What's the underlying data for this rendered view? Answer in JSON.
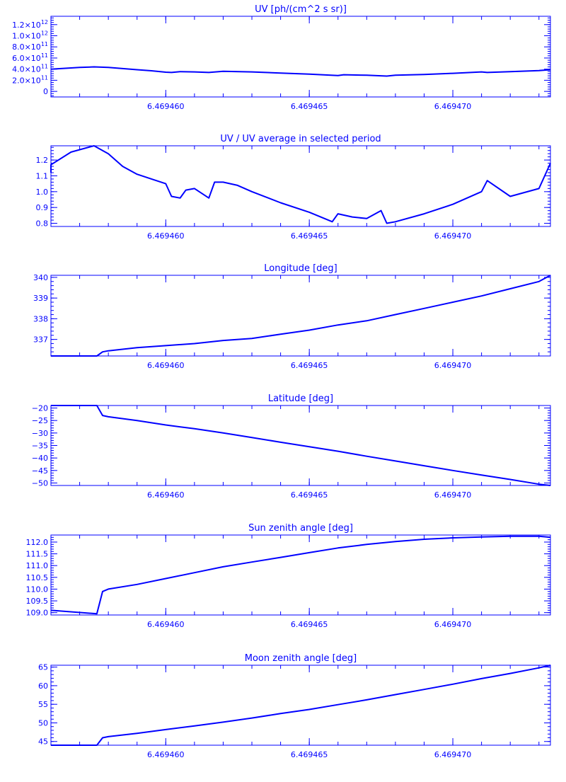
{
  "style": {
    "color": "#0000ff",
    "background": "#ffffff"
  },
  "chart_data": [
    {
      "type": "line",
      "title": "UV [ph/(cm^2 s sr)]",
      "xlabel": "",
      "ylabel": "",
      "xlim": [
        6.469456,
        6.4694734
      ],
      "ylim": [
        -0.1,
        1.35
      ],
      "grid": false,
      "yticks": [
        0,
        0.2,
        0.4,
        0.6,
        0.8,
        1.0,
        1.2
      ],
      "ytick_labels": [
        {
          "m": "0",
          "e": ""
        },
        {
          "m": "2.0×10",
          "e": "11"
        },
        {
          "m": "4.0×10",
          "e": "11"
        },
        {
          "m": "6.0×10",
          "e": "11"
        },
        {
          "m": "8.0×10",
          "e": "11"
        },
        {
          "m": "1.0×10",
          "e": "12"
        },
        {
          "m": "1.2×10",
          "e": "12"
        }
      ],
      "xticks": [
        6.46946,
        6.469465,
        6.46947
      ],
      "xtick_labels": [
        "6.469460",
        "6.469465",
        "6.469470"
      ],
      "series": [
        {
          "x": [
            6.469456,
            6.469457,
            6.4694575,
            6.469458,
            6.4694585,
            6.469459,
            6.4694595,
            6.46946,
            6.4694602,
            6.4694605,
            6.469461,
            6.4694615,
            6.469462,
            6.469463,
            6.469464,
            6.469465,
            6.469466,
            6.4694662,
            6.469467,
            6.4694677,
            6.469468,
            6.469469,
            6.46947,
            6.469471,
            6.4694712,
            6.469472,
            6.469473,
            6.4694734
          ],
          "y": [
            0.4,
            0.43,
            0.44,
            0.43,
            0.41,
            0.39,
            0.37,
            0.345,
            0.34,
            0.355,
            0.35,
            0.34,
            0.36,
            0.35,
            0.33,
            0.31,
            0.285,
            0.3,
            0.29,
            0.275,
            0.29,
            0.305,
            0.325,
            0.35,
            0.34,
            0.355,
            0.375,
            0.39
          ]
        }
      ]
    },
    {
      "type": "line",
      "title": "UV / UV average in selected period",
      "xlabel": "",
      "ylabel": "",
      "xlim": [
        6.469456,
        6.4694734
      ],
      "ylim": [
        0.78,
        1.29
      ],
      "grid": false,
      "yticks": [
        0.8,
        0.9,
        1.0,
        1.1,
        1.2
      ],
      "ytick_labels": [
        {
          "m": "0.8",
          "e": ""
        },
        {
          "m": "0.9",
          "e": ""
        },
        {
          "m": "1.0",
          "e": ""
        },
        {
          "m": "1.1",
          "e": ""
        },
        {
          "m": "1.2",
          "e": ""
        }
      ],
      "xticks": [
        6.46946,
        6.469465,
        6.46947
      ],
      "xtick_labels": [
        "6.469460",
        "6.469465",
        "6.469470"
      ],
      "series": [
        {
          "x": [
            6.469456,
            6.469456,
            6.4694567,
            6.4694575,
            6.469458,
            6.4694585,
            6.469459,
            6.46946,
            6.4694602,
            6.4694605,
            6.4694607,
            6.469461,
            6.4694615,
            6.4694617,
            6.469462,
            6.4694625,
            6.469463,
            6.469464,
            6.469465,
            6.4694658,
            6.469466,
            6.4694665,
            6.469467,
            6.4694675,
            6.4694677,
            6.469468,
            6.469469,
            6.46947,
            6.469471,
            6.4694712,
            6.469472,
            6.469473,
            6.4694734
          ],
          "y": [
            1.12,
            1.17,
            1.25,
            1.3,
            1.24,
            1.16,
            1.11,
            1.05,
            0.97,
            0.96,
            1.01,
            1.02,
            0.96,
            1.06,
            1.06,
            1.04,
            1.0,
            0.93,
            0.87,
            0.81,
            0.86,
            0.84,
            0.83,
            0.88,
            0.8,
            0.81,
            0.86,
            0.92,
            1.0,
            1.07,
            0.97,
            1.02,
            1.18
          ]
        }
      ]
    },
    {
      "type": "line",
      "title": "Longitude [deg]",
      "xlabel": "",
      "ylabel": "",
      "xlim": [
        6.469456,
        6.4694734
      ],
      "ylim": [
        336.2,
        340.1
      ],
      "grid": false,
      "yticks": [
        337,
        338,
        339,
        340
      ],
      "ytick_labels": [
        {
          "m": "337",
          "e": ""
        },
        {
          "m": "338",
          "e": ""
        },
        {
          "m": "339",
          "e": ""
        },
        {
          "m": "340",
          "e": ""
        }
      ],
      "xticks": [
        6.46946,
        6.469465,
        6.46947
      ],
      "xtick_labels": [
        "6.469460",
        "6.469465",
        "6.469470"
      ],
      "series": [
        {
          "x": [
            6.469456,
            6.469457,
            6.4694576,
            6.4694578,
            6.469458,
            6.469459,
            6.46946,
            6.469461,
            6.469462,
            6.469463,
            6.469464,
            6.469465,
            6.469466,
            6.469467,
            6.469468,
            6.469469,
            6.46947,
            6.469471,
            6.469472,
            6.469473,
            6.4694734
          ],
          "y": [
            336.2,
            336.2,
            336.2,
            336.4,
            336.45,
            336.6,
            336.7,
            336.8,
            336.95,
            337.05,
            337.25,
            337.45,
            337.7,
            337.9,
            338.2,
            338.5,
            338.8,
            339.1,
            339.45,
            339.8,
            340.1
          ]
        }
      ]
    },
    {
      "type": "line",
      "title": "Latitude [deg]",
      "xlabel": "",
      "ylabel": "",
      "xlim": [
        6.469456,
        6.4694734
      ],
      "ylim": [
        -51,
        -19
      ],
      "grid": false,
      "yticks": [
        -50,
        -45,
        -40,
        -35,
        -30,
        -25,
        -20
      ],
      "ytick_labels": [
        {
          "m": "−50",
          "e": ""
        },
        {
          "m": "−45",
          "e": ""
        },
        {
          "m": "−40",
          "e": ""
        },
        {
          "m": "−35",
          "e": ""
        },
        {
          "m": "−30",
          "e": ""
        },
        {
          "m": "−25",
          "e": ""
        },
        {
          "m": "−20",
          "e": ""
        }
      ],
      "xticks": [
        6.46946,
        6.469465,
        6.46947
      ],
      "xtick_labels": [
        "6.469460",
        "6.469465",
        "6.469470"
      ],
      "series": [
        {
          "x": [
            6.469456,
            6.4694576,
            6.4694578,
            6.469458,
            6.469459,
            6.46946,
            6.469461,
            6.469462,
            6.469463,
            6.469464,
            6.469465,
            6.469466,
            6.469467,
            6.469468,
            6.469469,
            6.46947,
            6.469471,
            6.469472,
            6.469473,
            6.4694734
          ],
          "y": [
            -19,
            -19,
            -23,
            -23.5,
            -25,
            -26.8,
            -28.3,
            -30,
            -31.8,
            -33.7,
            -35.5,
            -37.3,
            -39.3,
            -41.2,
            -43.1,
            -45,
            -46.8,
            -48.6,
            -50.5,
            -51
          ]
        }
      ]
    },
    {
      "type": "line",
      "title": "Sun zenith angle [deg]",
      "xlabel": "",
      "ylabel": "",
      "xlim": [
        6.469456,
        6.4694734
      ],
      "ylim": [
        108.9,
        112.3
      ],
      "grid": false,
      "yticks": [
        109.0,
        109.5,
        110.0,
        110.5,
        111.0,
        111.5,
        112.0
      ],
      "ytick_labels": [
        {
          "m": "109.0",
          "e": ""
        },
        {
          "m": "109.5",
          "e": ""
        },
        {
          "m": "110.0",
          "e": ""
        },
        {
          "m": "110.5",
          "e": ""
        },
        {
          "m": "111.0",
          "e": ""
        },
        {
          "m": "111.5",
          "e": ""
        },
        {
          "m": "112.0",
          "e": ""
        }
      ],
      "xticks": [
        6.46946,
        6.469465,
        6.46947
      ],
      "xtick_labels": [
        "6.469460",
        "6.469465",
        "6.469470"
      ],
      "series": [
        {
          "x": [
            6.469456,
            6.4694576,
            6.4694578,
            6.469458,
            6.469459,
            6.46946,
            6.469461,
            6.469462,
            6.469463,
            6.469464,
            6.469465,
            6.469466,
            6.469467,
            6.469468,
            6.469469,
            6.46947,
            6.469471,
            6.469472,
            6.469473,
            6.4694734
          ],
          "y": [
            109.1,
            108.95,
            109.9,
            110.0,
            110.2,
            110.45,
            110.7,
            110.95,
            111.15,
            111.35,
            111.55,
            111.75,
            111.9,
            112.02,
            112.12,
            112.18,
            112.22,
            112.25,
            112.25,
            112.2
          ]
        }
      ]
    },
    {
      "type": "line",
      "title": "Moon zenith angle [deg]",
      "xlabel": "",
      "ylabel": "",
      "xlim": [
        6.469456,
        6.4694734
      ],
      "ylim": [
        44,
        65.5
      ],
      "grid": false,
      "yticks": [
        45,
        50,
        55,
        60,
        65
      ],
      "ytick_labels": [
        {
          "m": "45",
          "e": ""
        },
        {
          "m": "50",
          "e": ""
        },
        {
          "m": "55",
          "e": ""
        },
        {
          "m": "60",
          "e": ""
        },
        {
          "m": "65",
          "e": ""
        }
      ],
      "xticks": [
        6.46946,
        6.469465,
        6.46947
      ],
      "xtick_labels": [
        "6.469460",
        "6.469465",
        "6.469470"
      ],
      "series": [
        {
          "x": [
            6.469456,
            6.4694576,
            6.4694578,
            6.469458,
            6.469459,
            6.46946,
            6.469461,
            6.469462,
            6.469463,
            6.469464,
            6.469465,
            6.469466,
            6.469467,
            6.469468,
            6.469469,
            6.46947,
            6.469471,
            6.469472,
            6.469473,
            6.4694734
          ],
          "y": [
            44,
            44,
            46,
            46.3,
            47.2,
            48.2,
            49.2,
            50.2,
            51.3,
            52.5,
            53.6,
            54.9,
            56.2,
            57.6,
            59.0,
            60.4,
            61.9,
            63.3,
            64.8,
            65.5
          ]
        }
      ]
    }
  ]
}
